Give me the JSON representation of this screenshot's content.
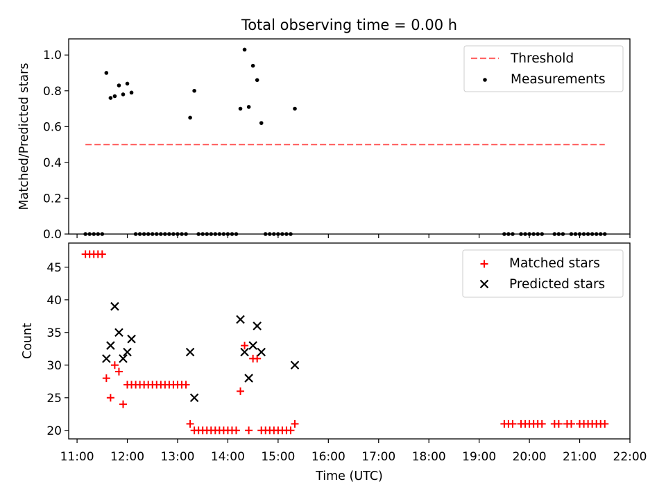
{
  "title": "Total observing time = 0.00 h",
  "chart_data": [
    {
      "type": "scatter",
      "ylabel": "Matched/Predicted stars",
      "ylim": [
        0,
        1.09
      ],
      "yticks": [
        "0.0",
        "0.2",
        "0.4",
        "0.6",
        "0.8",
        "1.0"
      ],
      "grid": false,
      "legend": "top-right",
      "threshold": {
        "name": "Threshold",
        "y": 0.5,
        "x_start": "11:10",
        "x_end": "21:30",
        "color": "#ff6666"
      },
      "measurements": {
        "name": "Measurements",
        "color": "#000000",
        "points": [
          [
            "11:10",
            0
          ],
          [
            "11:15",
            0
          ],
          [
            "11:20",
            0
          ],
          [
            "11:25",
            0
          ],
          [
            "11:30",
            0
          ],
          [
            "11:35",
            0.9
          ],
          [
            "11:40",
            0.76
          ],
          [
            "11:45",
            0.77
          ],
          [
            "11:50",
            0.83
          ],
          [
            "11:55",
            0.78
          ],
          [
            "12:00",
            0.84
          ],
          [
            "12:05",
            0.79
          ],
          [
            "12:10",
            0
          ],
          [
            "12:15",
            0
          ],
          [
            "12:20",
            0
          ],
          [
            "12:25",
            0
          ],
          [
            "12:30",
            0
          ],
          [
            "12:35",
            0
          ],
          [
            "12:40",
            0
          ],
          [
            "12:45",
            0
          ],
          [
            "12:50",
            0
          ],
          [
            "12:55",
            0
          ],
          [
            "13:00",
            0
          ],
          [
            "13:05",
            0
          ],
          [
            "13:10",
            0
          ],
          [
            "13:15",
            0.65
          ],
          [
            "13:20",
            0.8
          ],
          [
            "13:25",
            0
          ],
          [
            "13:30",
            0
          ],
          [
            "13:35",
            0
          ],
          [
            "13:40",
            0
          ],
          [
            "13:45",
            0
          ],
          [
            "13:50",
            0
          ],
          [
            "13:55",
            0
          ],
          [
            "14:00",
            0
          ],
          [
            "14:05",
            0
          ],
          [
            "14:10",
            0
          ],
          [
            "14:15",
            0.7
          ],
          [
            "14:20",
            1.03
          ],
          [
            "14:25",
            0.71
          ],
          [
            "14:30",
            0.94
          ],
          [
            "14:35",
            0.86
          ],
          [
            "14:40",
            0.62
          ],
          [
            "14:45",
            0
          ],
          [
            "14:50",
            0
          ],
          [
            "14:55",
            0
          ],
          [
            "15:00",
            0
          ],
          [
            "15:05",
            0
          ],
          [
            "15:10",
            0
          ],
          [
            "15:15",
            0
          ],
          [
            "15:20",
            0.7
          ],
          [
            "19:30",
            0
          ],
          [
            "19:35",
            0
          ],
          [
            "19:40",
            0
          ],
          [
            "19:50",
            0
          ],
          [
            "19:55",
            0
          ],
          [
            "20:00",
            0
          ],
          [
            "20:05",
            0
          ],
          [
            "20:10",
            0
          ],
          [
            "20:15",
            0
          ],
          [
            "20:30",
            0
          ],
          [
            "20:35",
            0
          ],
          [
            "20:40",
            0
          ],
          [
            "20:50",
            0
          ],
          [
            "20:55",
            0
          ],
          [
            "21:00",
            0
          ],
          [
            "21:05",
            0
          ],
          [
            "21:10",
            0
          ],
          [
            "21:15",
            0
          ],
          [
            "21:20",
            0
          ],
          [
            "21:25",
            0
          ],
          [
            "21:30",
            0
          ]
        ]
      }
    },
    {
      "type": "scatter",
      "xlabel": "Time (UTC)",
      "ylabel": "Count",
      "ylim": [
        18.7,
        48.7
      ],
      "yticks": [
        "20",
        "25",
        "30",
        "35",
        "40",
        "45"
      ],
      "xlim": [
        "10:50",
        "22:00"
      ],
      "xticks": [
        "11:00",
        "12:00",
        "13:00",
        "14:00",
        "15:00",
        "16:00",
        "17:00",
        "18:00",
        "19:00",
        "20:00",
        "21:00",
        "22:00"
      ],
      "grid": false,
      "legend": "top-right",
      "matched": {
        "name": "Matched stars",
        "color": "#ff0000",
        "points": [
          [
            "11:10",
            47
          ],
          [
            "11:15",
            47
          ],
          [
            "11:20",
            47
          ],
          [
            "11:25",
            47
          ],
          [
            "11:30",
            47
          ],
          [
            "11:35",
            28
          ],
          [
            "11:40",
            25
          ],
          [
            "11:45",
            30
          ],
          [
            "11:50",
            29
          ],
          [
            "11:55",
            24
          ],
          [
            "12:00",
            27
          ],
          [
            "12:05",
            27
          ],
          [
            "12:10",
            27
          ],
          [
            "12:15",
            27
          ],
          [
            "12:20",
            27
          ],
          [
            "12:25",
            27
          ],
          [
            "12:30",
            27
          ],
          [
            "12:35",
            27
          ],
          [
            "12:40",
            27
          ],
          [
            "12:45",
            27
          ],
          [
            "12:50",
            27
          ],
          [
            "12:55",
            27
          ],
          [
            "13:00",
            27
          ],
          [
            "13:05",
            27
          ],
          [
            "13:10",
            27
          ],
          [
            "13:15",
            21
          ],
          [
            "13:20",
            20
          ],
          [
            "13:25",
            20
          ],
          [
            "13:30",
            20
          ],
          [
            "13:35",
            20
          ],
          [
            "13:40",
            20
          ],
          [
            "13:45",
            20
          ],
          [
            "13:50",
            20
          ],
          [
            "13:55",
            20
          ],
          [
            "14:00",
            20
          ],
          [
            "14:05",
            20
          ],
          [
            "14:10",
            20
          ],
          [
            "14:15",
            26
          ],
          [
            "14:20",
            33
          ],
          [
            "14:25",
            20
          ],
          [
            "14:30",
            31
          ],
          [
            "14:35",
            31
          ],
          [
            "14:40",
            20
          ],
          [
            "14:45",
            20
          ],
          [
            "14:50",
            20
          ],
          [
            "14:55",
            20
          ],
          [
            "15:00",
            20
          ],
          [
            "15:05",
            20
          ],
          [
            "15:10",
            20
          ],
          [
            "15:15",
            20
          ],
          [
            "15:20",
            21
          ],
          [
            "19:30",
            21
          ],
          [
            "19:35",
            21
          ],
          [
            "19:40",
            21
          ],
          [
            "19:50",
            21
          ],
          [
            "19:55",
            21
          ],
          [
            "20:00",
            21
          ],
          [
            "20:05",
            21
          ],
          [
            "20:10",
            21
          ],
          [
            "20:15",
            21
          ],
          [
            "20:30",
            21
          ],
          [
            "20:35",
            21
          ],
          [
            "20:45",
            21
          ],
          [
            "20:50",
            21
          ],
          [
            "21:00",
            21
          ],
          [
            "21:05",
            21
          ],
          [
            "21:10",
            21
          ],
          [
            "21:15",
            21
          ],
          [
            "21:20",
            21
          ],
          [
            "21:25",
            21
          ],
          [
            "21:30",
            21
          ]
        ]
      },
      "predicted": {
        "name": "Predicted stars",
        "color": "#000000",
        "points": [
          [
            "11:35",
            31
          ],
          [
            "11:40",
            33
          ],
          [
            "11:45",
            39
          ],
          [
            "11:50",
            35
          ],
          [
            "11:55",
            31
          ],
          [
            "12:00",
            32
          ],
          [
            "12:05",
            34
          ],
          [
            "13:15",
            32
          ],
          [
            "13:20",
            25
          ],
          [
            "14:15",
            37
          ],
          [
            "14:20",
            32
          ],
          [
            "14:25",
            28
          ],
          [
            "14:30",
            33
          ],
          [
            "14:35",
            36
          ],
          [
            "14:40",
            32
          ],
          [
            "15:20",
            30
          ]
        ]
      }
    }
  ]
}
